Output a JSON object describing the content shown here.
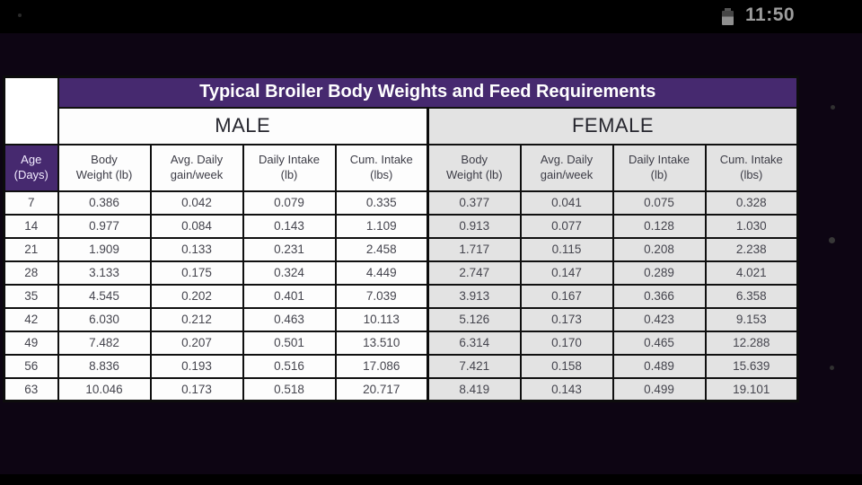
{
  "status_bar": {
    "time": "11:50"
  },
  "table": {
    "title": "Typical Broiler Body Weights and Feed Requirements",
    "sections": {
      "male": "MALE",
      "female": "FEMALE"
    },
    "age_header": {
      "line1": "Age",
      "line2": "(Days)"
    },
    "column_headers": [
      {
        "line1": "Body",
        "line2": "Weight (lb)"
      },
      {
        "line1": "Avg. Daily",
        "line2": "gain/week"
      },
      {
        "line1": "Daily Intake",
        "line2": "(lb)"
      },
      {
        "line1": "Cum. Intake",
        "line2": "(lbs)"
      }
    ],
    "rows": [
      {
        "age": "7",
        "male": [
          "0.386",
          "0.042",
          "0.079",
          "0.335"
        ],
        "female": [
          "0.377",
          "0.041",
          "0.075",
          "0.328"
        ]
      },
      {
        "age": "14",
        "male": [
          "0.977",
          "0.084",
          "0.143",
          "1.109"
        ],
        "female": [
          "0.913",
          "0.077",
          "0.128",
          "1.030"
        ]
      },
      {
        "age": "21",
        "male": [
          "1.909",
          "0.133",
          "0.231",
          "2.458"
        ],
        "female": [
          "1.717",
          "0.115",
          "0.208",
          "2.238"
        ]
      },
      {
        "age": "28",
        "male": [
          "3.133",
          "0.175",
          "0.324",
          "4.449"
        ],
        "female": [
          "2.747",
          "0.147",
          "0.289",
          "4.021"
        ]
      },
      {
        "age": "35",
        "male": [
          "4.545",
          "0.202",
          "0.401",
          "7.039"
        ],
        "female": [
          "3.913",
          "0.167",
          "0.366",
          "6.358"
        ]
      },
      {
        "age": "42",
        "male": [
          "6.030",
          "0.212",
          "0.463",
          "10.113"
        ],
        "female": [
          "5.126",
          "0.173",
          "0.423",
          "9.153"
        ]
      },
      {
        "age": "49",
        "male": [
          "7.482",
          "0.207",
          "0.501",
          "13.510"
        ],
        "female": [
          "6.314",
          "0.170",
          "0.465",
          "12.288"
        ]
      },
      {
        "age": "56",
        "male": [
          "8.836",
          "0.193",
          "0.516",
          "17.086"
        ],
        "female": [
          "7.421",
          "0.158",
          "0.489",
          "15.639"
        ]
      },
      {
        "age": "63",
        "male": [
          "10.046",
          "0.173",
          "0.518",
          "20.717"
        ],
        "female": [
          "8.419",
          "0.143",
          "0.499",
          "19.101"
        ]
      }
    ]
  },
  "icons": {
    "battery": "battery-icon"
  },
  "colors": {
    "accent_purple": "#46296f",
    "male_cell_bg": "#fdfdfd",
    "female_cell_bg": "#e3e3e3",
    "status_time_gray": "#9e9e9e",
    "content_bg": "#0d0513"
  }
}
